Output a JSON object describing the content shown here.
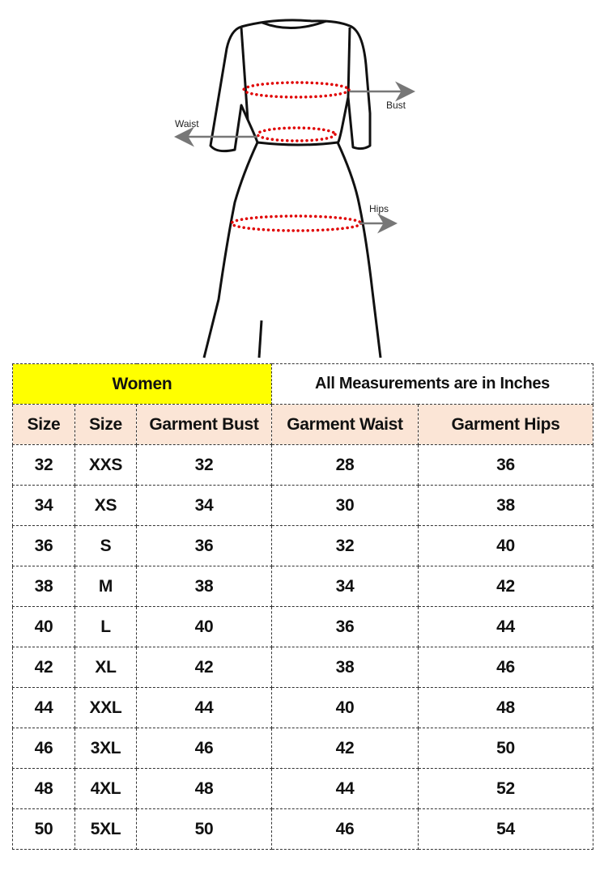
{
  "figure": {
    "labels": {
      "bust": "Bust",
      "waist": "Waist",
      "hips": "Hips"
    },
    "colors": {
      "outline": "#111111",
      "dots": "#e00000",
      "arrows": "#777777"
    }
  },
  "table": {
    "title": "Women",
    "note": "All Measurements are in Inches",
    "columns": [
      "Size",
      "Size",
      "Garment Bust",
      "Garment Waist",
      "Garment Hips"
    ],
    "rows": [
      [
        "32",
        "XXS",
        "32",
        "28",
        "36"
      ],
      [
        "34",
        "XS",
        "34",
        "30",
        "38"
      ],
      [
        "36",
        "S",
        "36",
        "32",
        "40"
      ],
      [
        "38",
        "M",
        "38",
        "34",
        "42"
      ],
      [
        "40",
        "L",
        "40",
        "36",
        "44"
      ],
      [
        "42",
        "XL",
        "42",
        "38",
        "46"
      ],
      [
        "44",
        "XXL",
        "44",
        "40",
        "48"
      ],
      [
        "46",
        "3XL",
        "46",
        "42",
        "50"
      ],
      [
        "48",
        "4XL",
        "48",
        "44",
        "52"
      ],
      [
        "50",
        "5XL",
        "50",
        "46",
        "54"
      ]
    ],
    "colors": {
      "title_bg": "#ffff00",
      "header_bg": "#fbe5d6"
    }
  }
}
